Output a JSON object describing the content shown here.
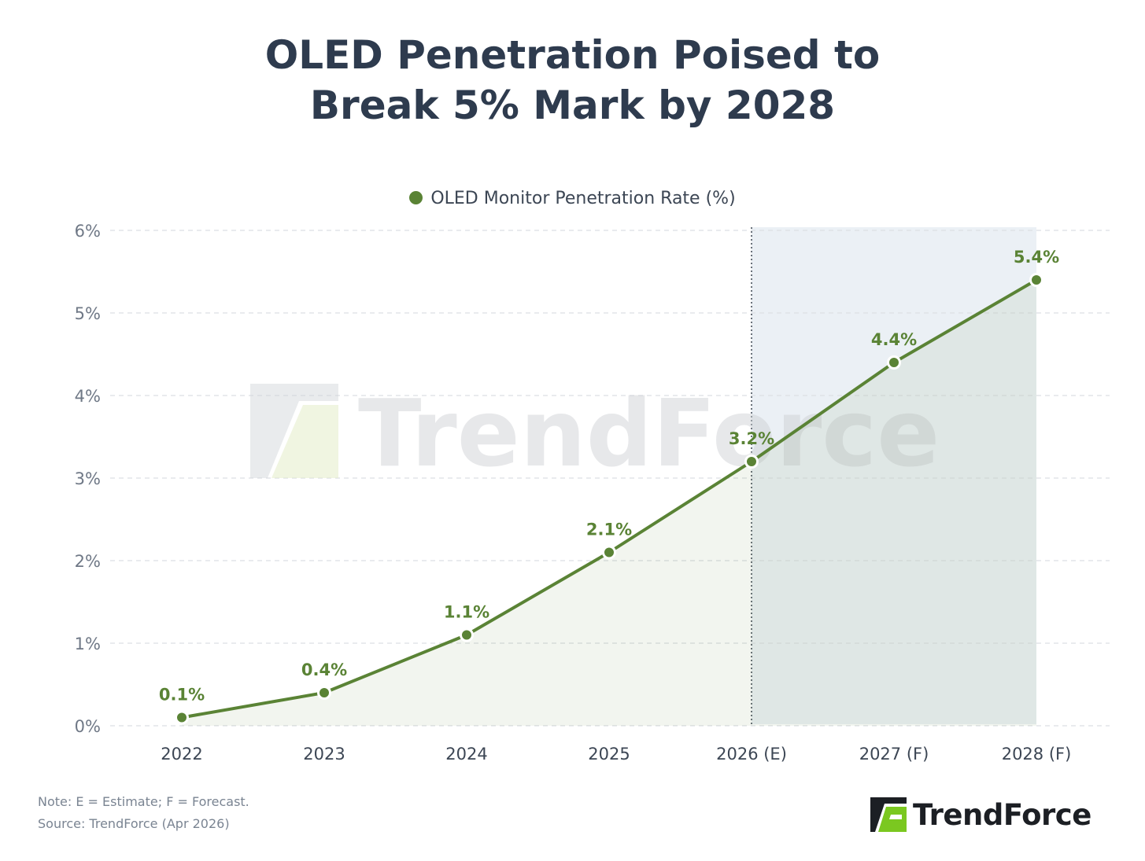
{
  "title_line1": "OLED Penetration Poised to",
  "title_line2": "Break 5% Mark by 2028",
  "watermark": "TrendForce",
  "note": "Note: E = Estimate; F = Forecast.",
  "source": "Source: TrendForce (Apr 2026)",
  "brand": "TrendForce",
  "colors": {
    "line": "#5a8335",
    "forecast_band": "#ebf0f5",
    "area_fill": "#f0f4ec",
    "brand_green": "#7bc820"
  },
  "chart_data": {
    "type": "line",
    "categories": [
      "2022",
      "2023",
      "2024",
      "2025",
      "2026 (E)",
      "2027 (F)",
      "2028 (F)"
    ],
    "series": [
      {
        "name": "OLED Monitor Penetration Rate (%)",
        "values": [
          0.1,
          0.4,
          1.1,
          2.1,
          3.2,
          4.4,
          5.4
        ],
        "labels": [
          "0.1%",
          "0.4%",
          "1.1%",
          "2.1%",
          "3.2%",
          "4.4%",
          "5.4%"
        ]
      }
    ],
    "ylim": [
      0,
      6
    ],
    "yticks": [
      "0%",
      "1%",
      "2%",
      "3%",
      "4%",
      "5%",
      "6%"
    ],
    "grid": true,
    "legend_position": "top-center",
    "forecast_region_start": "2026 (E)"
  }
}
